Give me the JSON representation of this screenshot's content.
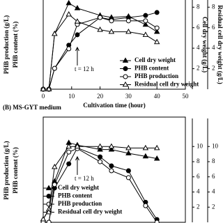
{
  "chart_data": [
    {
      "type": "line",
      "xlabel": "Cultivation time (hour)",
      "ylabels": [
        "PHB production (g/L)",
        "PHB content (%)"
      ],
      "y2label": "Cell dry weight (g/L)",
      "y3label": "Residual cell dry weight (g/L)",
      "xlim": [
        0,
        50
      ],
      "xticks": [
        0,
        10,
        20,
        30,
        40,
        50
      ],
      "ylim": [
        0,
        30
      ],
      "y2lim": [
        0,
        8.7
      ],
      "y2ticks": [
        2,
        4,
        6,
        8
      ],
      "y3lim": [
        0,
        8.7
      ],
      "y3ticks": [
        2,
        4,
        6,
        8
      ],
      "annotation": "t = 12 h",
      "annotation_x": 12,
      "x": [
        0,
        2,
        4,
        9,
        12,
        20,
        24,
        30,
        36,
        40
      ],
      "series": [
        {
          "name": "Cell dry weight",
          "marker": "triangle",
          "filled": true,
          "axis": "y2",
          "values": [
            0,
            0,
            5.4,
            8.4,
            7.9,
            7.2,
            7.0,
            7.1,
            6.3,
            5.6
          ]
        },
        {
          "name": "PHB content",
          "marker": "circle",
          "filled": true,
          "axis": "y",
          "values": [
            0,
            0,
            7,
            14.8,
            18.3,
            24.1,
            23.4,
            24.1,
            24.8,
            25.8
          ]
        },
        {
          "name": "PHB production",
          "marker": "circle",
          "filled": false,
          "axis": "y",
          "values": [
            0,
            0,
            7,
            13.6,
            21.8,
            24.1,
            23,
            23,
            23,
            20.6
          ]
        },
        {
          "name": "Residual cell dry weight",
          "marker": "triangle",
          "filled": false,
          "axis": "y3",
          "values": [
            0,
            0,
            5.4,
            7.3,
            6.6,
            5.8,
            5.6,
            5.6,
            5.3,
            4.6
          ]
        }
      ]
    },
    {
      "type": "line",
      "title": "(B) MS-GYT medium",
      "ylabels": [
        "PHB production (g/L)",
        "PHB content (%)"
      ],
      "xlim": [
        0,
        50
      ],
      "ylim": [
        0,
        30
      ],
      "y2lim": [
        0,
        13.7
      ],
      "y2ticks": [
        2,
        4,
        6,
        8,
        10
      ],
      "y3lim": [
        0,
        13.7
      ],
      "y3ticks": [
        2,
        4,
        6,
        8,
        10
      ],
      "annotation": "t = 12 h",
      "annotation_x": 12,
      "x": [
        0,
        2,
        4,
        9,
        12,
        20,
        24,
        30,
        36,
        40
      ],
      "series": [
        {
          "name": "Cell dry weight",
          "marker": "triangle",
          "filled": true,
          "axis": "y2",
          "values": [
            0.4,
            1.7,
            5.4,
            10.5,
            10.2,
            9.6,
            9.6,
            9.1,
            8.7,
            8.4
          ]
        },
        {
          "name": "PHB content",
          "marker": "circle",
          "filled": true,
          "axis": "y",
          "values": [
            0,
            0,
            9.9,
            16.9,
            21.5,
            18.9,
            16.3,
            14.9,
            5.8,
            0.8
          ]
        },
        {
          "name": "PHB production",
          "marker": "circle",
          "filled": false,
          "axis": "y",
          "values": [
            0,
            0,
            10.9,
            20.3,
            21.3,
            17.5,
            14.9,
            12.9,
            4.8,
            0
          ]
        },
        {
          "name": "Residual cell dry weight",
          "marker": "triangle",
          "filled": false,
          "axis": "y3",
          "values": [
            0.4,
            1.7,
            7.3,
            10,
            10,
            10,
            10,
            9.8,
            9.8,
            9.8
          ]
        }
      ]
    }
  ]
}
